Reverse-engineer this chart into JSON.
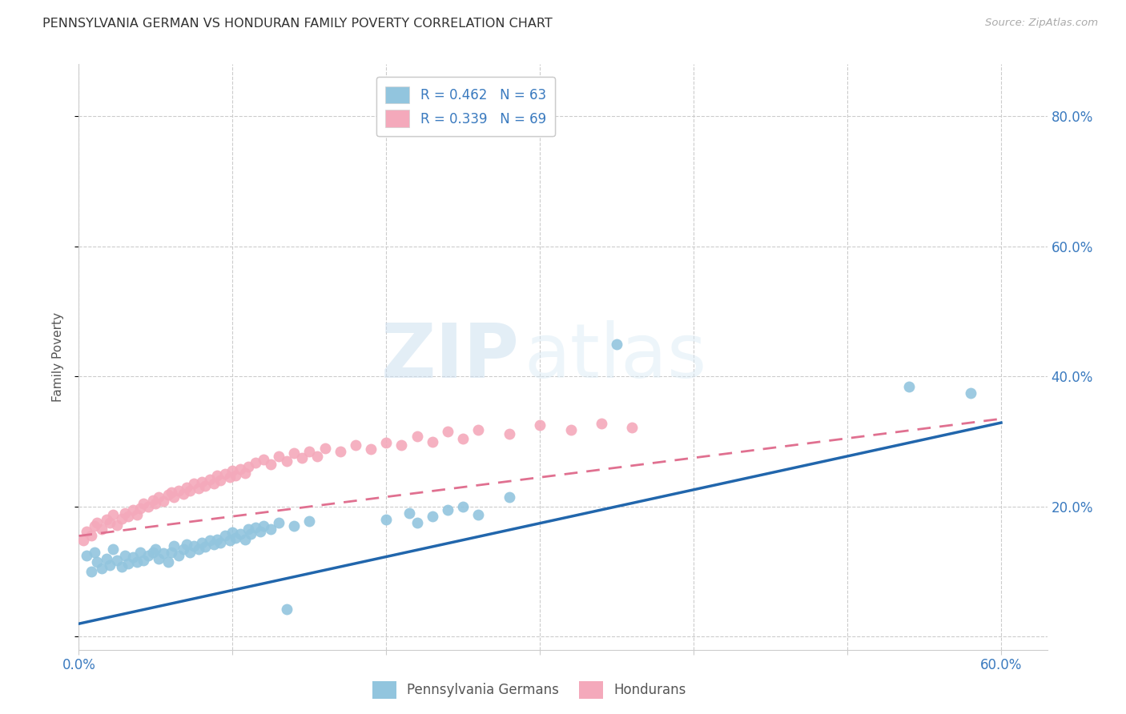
{
  "title": "PENNSYLVANIA GERMAN VS HONDURAN FAMILY POVERTY CORRELATION CHART",
  "source": "Source: ZipAtlas.com",
  "ylabel": "Family Poverty",
  "xlim": [
    0.0,
    0.63
  ],
  "ylim": [
    -0.02,
    0.88
  ],
  "blue_color": "#92c5de",
  "pink_color": "#f4a9bb",
  "blue_line_color": "#2166ac",
  "pink_line_color": "#e07090",
  "grid_color": "#cccccc",
  "background_color": "#ffffff",
  "legend_r1": "R = 0.462",
  "legend_n1": "N = 63",
  "legend_r2": "R = 0.339",
  "legend_n2": "N = 69",
  "legend_label1": "Pennsylvania Germans",
  "legend_label2": "Hondurans",
  "watermark_zip": "ZIP",
  "watermark_atlas": "atlas",
  "blue_points_x": [
    0.005,
    0.008,
    0.01,
    0.012,
    0.015,
    0.018,
    0.02,
    0.022,
    0.025,
    0.028,
    0.03,
    0.032,
    0.035,
    0.038,
    0.04,
    0.042,
    0.045,
    0.048,
    0.05,
    0.052,
    0.055,
    0.058,
    0.06,
    0.062,
    0.065,
    0.068,
    0.07,
    0.072,
    0.075,
    0.078,
    0.08,
    0.082,
    0.085,
    0.088,
    0.09,
    0.092,
    0.095,
    0.098,
    0.1,
    0.102,
    0.105,
    0.108,
    0.11,
    0.112,
    0.115,
    0.118,
    0.12,
    0.125,
    0.13,
    0.135,
    0.14,
    0.15,
    0.2,
    0.215,
    0.22,
    0.23,
    0.24,
    0.25,
    0.26,
    0.28,
    0.35,
    0.54,
    0.58
  ],
  "blue_points_y": [
    0.125,
    0.1,
    0.13,
    0.115,
    0.105,
    0.12,
    0.11,
    0.135,
    0.118,
    0.108,
    0.125,
    0.112,
    0.122,
    0.115,
    0.13,
    0.118,
    0.125,
    0.13,
    0.135,
    0.12,
    0.128,
    0.115,
    0.13,
    0.14,
    0.125,
    0.135,
    0.142,
    0.13,
    0.14,
    0.135,
    0.145,
    0.138,
    0.148,
    0.142,
    0.15,
    0.145,
    0.155,
    0.148,
    0.16,
    0.152,
    0.158,
    0.15,
    0.165,
    0.158,
    0.168,
    0.162,
    0.17,
    0.165,
    0.175,
    0.042,
    0.17,
    0.178,
    0.18,
    0.19,
    0.175,
    0.185,
    0.195,
    0.2,
    0.188,
    0.215,
    0.45,
    0.385,
    0.375
  ],
  "pink_points_x": [
    0.003,
    0.005,
    0.008,
    0.01,
    0.012,
    0.015,
    0.018,
    0.02,
    0.022,
    0.025,
    0.028,
    0.03,
    0.032,
    0.035,
    0.038,
    0.04,
    0.042,
    0.045,
    0.048,
    0.05,
    0.052,
    0.055,
    0.058,
    0.06,
    0.062,
    0.065,
    0.068,
    0.07,
    0.072,
    0.075,
    0.078,
    0.08,
    0.082,
    0.085,
    0.088,
    0.09,
    0.092,
    0.095,
    0.098,
    0.1,
    0.102,
    0.105,
    0.108,
    0.11,
    0.115,
    0.12,
    0.125,
    0.13,
    0.135,
    0.14,
    0.145,
    0.15,
    0.155,
    0.16,
    0.17,
    0.18,
    0.19,
    0.2,
    0.21,
    0.22,
    0.23,
    0.24,
    0.25,
    0.26,
    0.28,
    0.3,
    0.32,
    0.34,
    0.36
  ],
  "pink_points_y": [
    0.148,
    0.162,
    0.155,
    0.17,
    0.175,
    0.165,
    0.18,
    0.175,
    0.188,
    0.172,
    0.182,
    0.19,
    0.185,
    0.195,
    0.188,
    0.198,
    0.205,
    0.2,
    0.21,
    0.205,
    0.215,
    0.208,
    0.218,
    0.222,
    0.215,
    0.225,
    0.22,
    0.23,
    0.225,
    0.235,
    0.228,
    0.238,
    0.232,
    0.242,
    0.235,
    0.248,
    0.24,
    0.25,
    0.245,
    0.255,
    0.248,
    0.258,
    0.252,
    0.262,
    0.268,
    0.272,
    0.265,
    0.278,
    0.27,
    0.282,
    0.275,
    0.285,
    0.278,
    0.29,
    0.285,
    0.295,
    0.288,
    0.298,
    0.295,
    0.308,
    0.3,
    0.315,
    0.305,
    0.318,
    0.312,
    0.325,
    0.318,
    0.328,
    0.322
  ]
}
